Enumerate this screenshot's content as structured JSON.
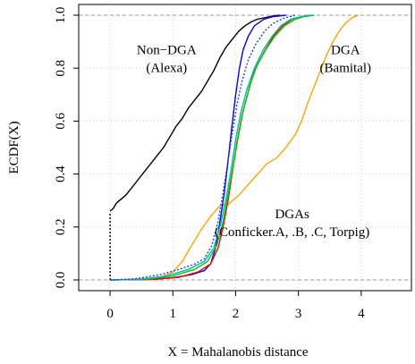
{
  "chart_data": {
    "type": "line",
    "xlabel": "X = Mahalanobis distance",
    "ylabel": "ECDF(X)",
    "xlim": [
      -0.5,
      4.8
    ],
    "ylim": [
      0.0,
      1.0
    ],
    "x_ticks": [
      "0",
      "1",
      "2",
      "3",
      "4"
    ],
    "y_ticks": [
      "0.0",
      "0.2",
      "0.4",
      "0.6",
      "0.8",
      "1.0"
    ],
    "grid": true,
    "reference_lines": [
      0,
      1
    ],
    "annotations": [
      {
        "line1": "Non−DGA",
        "line2": "(Alexa)",
        "x": 0.9,
        "y": 0.82
      },
      {
        "line1": "DGA",
        "line2": "(Bamital)",
        "x": 3.75,
        "y": 0.82
      },
      {
        "line1": "DGAs",
        "line2": "(Conficker.A, .B, .C, Torpig)",
        "x": 2.9,
        "y": 0.2
      }
    ],
    "series": [
      {
        "color": "#000000",
        "dashed": true,
        "points": [
          [
            0.0,
            0.0
          ],
          [
            0.0,
            0.25
          ]
        ]
      },
      {
        "color": "#000000",
        "points": [
          [
            0.0,
            0.26
          ],
          [
            0.05,
            0.27
          ],
          [
            0.1,
            0.29
          ],
          [
            0.15,
            0.3
          ],
          [
            0.25,
            0.32
          ],
          [
            0.35,
            0.35
          ],
          [
            0.45,
            0.38
          ],
          [
            0.55,
            0.41
          ],
          [
            0.65,
            0.44
          ],
          [
            0.75,
            0.47
          ],
          [
            0.85,
            0.5
          ],
          [
            0.95,
            0.54
          ],
          [
            1.05,
            0.58
          ],
          [
            1.15,
            0.61
          ],
          [
            1.25,
            0.65
          ],
          [
            1.35,
            0.68
          ],
          [
            1.45,
            0.71
          ],
          [
            1.55,
            0.75
          ],
          [
            1.65,
            0.79
          ],
          [
            1.75,
            0.84
          ],
          [
            1.85,
            0.88
          ],
          [
            1.95,
            0.91
          ],
          [
            2.05,
            0.94
          ],
          [
            2.15,
            0.96
          ],
          [
            2.25,
            0.975
          ],
          [
            2.35,
            0.985
          ],
          [
            2.45,
            0.99
          ],
          [
            2.55,
            0.995
          ],
          [
            2.7,
            1.0
          ]
        ]
      },
      {
        "color": "#ffa500",
        "points": [
          [
            0.0,
            0.0
          ],
          [
            0.4,
            0.002
          ],
          [
            0.8,
            0.01
          ],
          [
            1.0,
            0.03
          ],
          [
            1.15,
            0.07
          ],
          [
            1.25,
            0.11
          ],
          [
            1.35,
            0.15
          ],
          [
            1.45,
            0.19
          ],
          [
            1.6,
            0.24
          ],
          [
            1.75,
            0.28
          ],
          [
            1.9,
            0.29
          ],
          [
            2.05,
            0.32
          ],
          [
            2.2,
            0.36
          ],
          [
            2.35,
            0.4
          ],
          [
            2.5,
            0.44
          ],
          [
            2.65,
            0.46
          ],
          [
            2.8,
            0.5
          ],
          [
            2.95,
            0.55
          ],
          [
            3.05,
            0.6
          ],
          [
            3.15,
            0.67
          ],
          [
            3.25,
            0.73
          ],
          [
            3.35,
            0.79
          ],
          [
            3.45,
            0.85
          ],
          [
            3.55,
            0.9
          ],
          [
            3.65,
            0.94
          ],
          [
            3.75,
            0.97
          ],
          [
            3.85,
            0.99
          ],
          [
            3.95,
            1.0
          ]
        ]
      },
      {
        "color": "#0000ff",
        "points": [
          [
            0.0,
            0.0
          ],
          [
            0.6,
            0.002
          ],
          [
            1.0,
            0.008
          ],
          [
            1.3,
            0.02
          ],
          [
            1.5,
            0.035
          ],
          [
            1.6,
            0.06
          ],
          [
            1.68,
            0.12
          ],
          [
            1.75,
            0.22
          ],
          [
            1.82,
            0.33
          ],
          [
            1.88,
            0.45
          ],
          [
            1.94,
            0.58
          ],
          [
            2.0,
            0.7
          ],
          [
            2.06,
            0.8
          ],
          [
            2.12,
            0.87
          ],
          [
            2.2,
            0.92
          ],
          [
            2.3,
            0.96
          ],
          [
            2.45,
            0.985
          ],
          [
            2.6,
            0.995
          ],
          [
            2.8,
            1.0
          ]
        ]
      },
      {
        "color": "#ff0000",
        "points": [
          [
            0.0,
            0.0
          ],
          [
            0.7,
            0.002
          ],
          [
            1.1,
            0.01
          ],
          [
            1.4,
            0.03
          ],
          [
            1.6,
            0.06
          ],
          [
            1.72,
            0.12
          ],
          [
            1.8,
            0.2
          ],
          [
            1.88,
            0.3
          ],
          [
            1.95,
            0.41
          ],
          [
            2.02,
            0.52
          ],
          [
            2.1,
            0.62
          ],
          [
            2.2,
            0.71
          ],
          [
            2.3,
            0.79
          ],
          [
            2.45,
            0.86
          ],
          [
            2.6,
            0.92
          ],
          [
            2.75,
            0.96
          ],
          [
            2.9,
            0.985
          ],
          [
            3.05,
            0.995
          ],
          [
            3.2,
            1.0
          ]
        ]
      },
      {
        "color": "#00cc00",
        "points": [
          [
            0.0,
            0.0
          ],
          [
            0.6,
            0.003
          ],
          [
            1.0,
            0.015
          ],
          [
            1.35,
            0.04
          ],
          [
            1.55,
            0.07
          ],
          [
            1.7,
            0.13
          ],
          [
            1.8,
            0.22
          ],
          [
            1.88,
            0.32
          ],
          [
            1.96,
            0.43
          ],
          [
            2.04,
            0.54
          ],
          [
            2.12,
            0.64
          ],
          [
            2.22,
            0.73
          ],
          [
            2.34,
            0.81
          ],
          [
            2.48,
            0.87
          ],
          [
            2.62,
            0.92
          ],
          [
            2.78,
            0.96
          ],
          [
            2.95,
            0.985
          ],
          [
            3.1,
            0.995
          ],
          [
            3.25,
            1.0
          ]
        ]
      },
      {
        "color": "#00b8b8",
        "points": [
          [
            0.0,
            0.0
          ],
          [
            0.5,
            0.003
          ],
          [
            0.9,
            0.015
          ],
          [
            1.25,
            0.04
          ],
          [
            1.5,
            0.07
          ],
          [
            1.65,
            0.12
          ],
          [
            1.76,
            0.21
          ],
          [
            1.85,
            0.31
          ],
          [
            1.93,
            0.42
          ],
          [
            2.0,
            0.53
          ],
          [
            2.08,
            0.63
          ],
          [
            2.18,
            0.72
          ],
          [
            2.3,
            0.8
          ],
          [
            2.44,
            0.87
          ],
          [
            2.58,
            0.92
          ],
          [
            2.72,
            0.96
          ],
          [
            2.88,
            0.985
          ],
          [
            3.05,
            0.995
          ],
          [
            3.2,
            1.0
          ]
        ]
      },
      {
        "color": "#1f3cff",
        "dashed": true,
        "points": [
          [
            0.0,
            0.0
          ],
          [
            0.4,
            0.004
          ],
          [
            0.8,
            0.02
          ],
          [
            1.1,
            0.04
          ],
          [
            1.35,
            0.06
          ],
          [
            1.5,
            0.08
          ],
          [
            1.62,
            0.13
          ],
          [
            1.72,
            0.22
          ],
          [
            1.8,
            0.33
          ],
          [
            1.88,
            0.45
          ],
          [
            1.95,
            0.56
          ],
          [
            2.02,
            0.66
          ],
          [
            2.1,
            0.75
          ],
          [
            2.2,
            0.83
          ],
          [
            2.32,
            0.89
          ],
          [
            2.46,
            0.94
          ],
          [
            2.6,
            0.97
          ],
          [
            2.78,
            0.99
          ],
          [
            2.95,
            1.0
          ]
        ]
      }
    ]
  }
}
